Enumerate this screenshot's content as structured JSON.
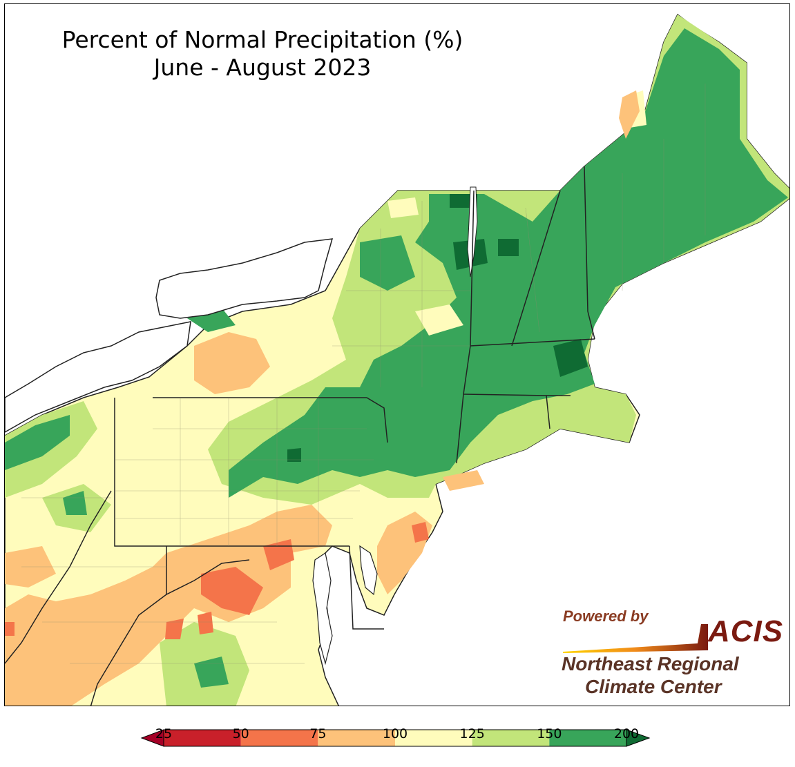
{
  "title": {
    "line1": "Percent of Normal Precipitation (%)",
    "line2": "June - August 2023"
  },
  "logo": {
    "powered_by": "Powered by",
    "acis": "ACIS",
    "org_line1": "Northeast Regional",
    "org_line2": "Climate Center"
  },
  "legend": {
    "bins": [
      {
        "from": 25,
        "to": 50,
        "color": "#c9202a"
      },
      {
        "from": 50,
        "to": 75,
        "color": "#f4744a"
      },
      {
        "from": 75,
        "to": 100,
        "color": "#fdc27a"
      },
      {
        "from": 100,
        "to": 125,
        "color": "#fffcbc"
      },
      {
        "from": 125,
        "to": 150,
        "color": "#c2e57a"
      },
      {
        "from": 150,
        "to": 200,
        "color": "#38a55a"
      }
    ],
    "under_color": "#a50026",
    "over_color": "#0f6b33",
    "tick_labels": [
      "25",
      "50",
      "75",
      "100",
      "125",
      "150",
      "200"
    ]
  }
}
